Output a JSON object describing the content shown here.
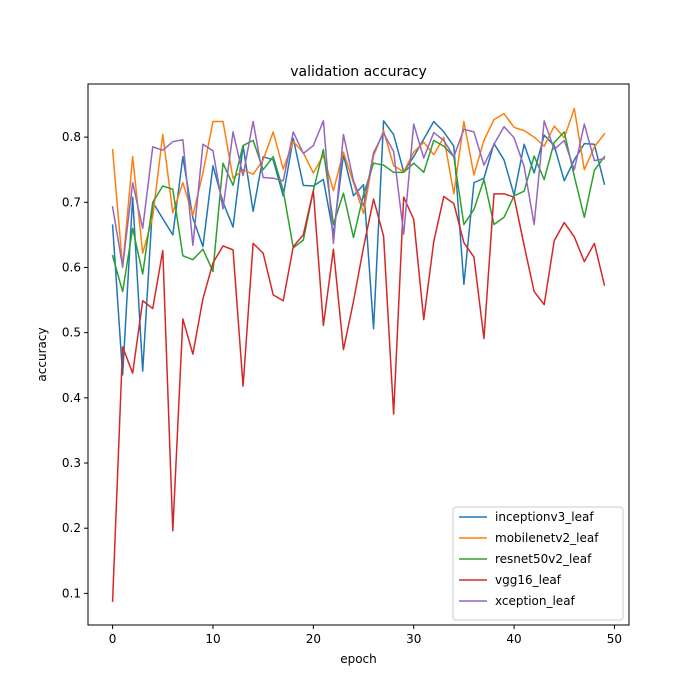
{
  "chart_data": {
    "type": "line",
    "title": "validation accuracy",
    "xlabel": "epoch",
    "ylabel": "accuracy",
    "xlim": [
      -2.45,
      51.45
    ],
    "ylim": [
      0.0515,
      0.8815
    ],
    "xticks": [
      0,
      10,
      20,
      30,
      40,
      50
    ],
    "xtick_labels": [
      "0",
      "10",
      "20",
      "30",
      "40",
      "50"
    ],
    "yticks": [
      0.1,
      0.2,
      0.3,
      0.4,
      0.5,
      0.6,
      0.7,
      0.8
    ],
    "ytick_labels": [
      "0.1",
      "0.2",
      "0.3",
      "0.4",
      "0.5",
      "0.6",
      "0.7",
      "0.8"
    ],
    "grid": false,
    "legend_position": "lower-right",
    "x": [
      0,
      1,
      2,
      3,
      4,
      5,
      6,
      7,
      8,
      9,
      10,
      11,
      12,
      13,
      14,
      15,
      16,
      17,
      18,
      19,
      20,
      21,
      22,
      23,
      24,
      25,
      26,
      27,
      28,
      29,
      30,
      31,
      32,
      33,
      34,
      35,
      36,
      37,
      38,
      39,
      40,
      41,
      42,
      43,
      44,
      45,
      46,
      47,
      48,
      49
    ],
    "series": [
      {
        "name": "inceptionv3_leaf",
        "color": "#1f77b4",
        "values": [
          0.665,
          0.435,
          0.708,
          0.441,
          0.7,
          0.675,
          0.65,
          0.77,
          0.676,
          0.632,
          0.756,
          0.7,
          0.662,
          0.787,
          0.686,
          0.77,
          0.765,
          0.71,
          0.798,
          0.726,
          0.725,
          0.735,
          0.651,
          0.773,
          0.71,
          0.727,
          0.506,
          0.825,
          0.804,
          0.747,
          0.77,
          0.797,
          0.824,
          0.808,
          0.786,
          0.574,
          0.73,
          0.737,
          0.79,
          0.765,
          0.711,
          0.789,
          0.745,
          0.803,
          0.787,
          0.733,
          0.765,
          0.79,
          0.789,
          0.728
        ]
      },
      {
        "name": "mobilenetv2_leaf",
        "color": "#ff7f0e",
        "values": [
          0.781,
          0.6,
          0.77,
          0.622,
          0.678,
          0.804,
          0.684,
          0.73,
          0.68,
          0.745,
          0.824,
          0.824,
          0.737,
          0.75,
          0.743,
          0.765,
          0.808,
          0.751,
          0.793,
          0.776,
          0.745,
          0.772,
          0.718,
          0.777,
          0.73,
          0.683,
          0.771,
          0.81,
          0.756,
          0.747,
          0.777,
          0.792,
          0.773,
          0.8,
          0.713,
          0.824,
          0.742,
          0.795,
          0.827,
          0.836,
          0.815,
          0.81,
          0.8,
          0.786,
          0.817,
          0.799,
          0.844,
          0.75,
          0.785,
          0.805
        ]
      },
      {
        "name": "resnet50v2_leaf",
        "color": "#2ca02c",
        "values": [
          0.618,
          0.563,
          0.66,
          0.59,
          0.7,
          0.725,
          0.72,
          0.618,
          0.612,
          0.628,
          0.594,
          0.76,
          0.726,
          0.787,
          0.795,
          0.75,
          0.77,
          0.718,
          0.63,
          0.642,
          0.718,
          0.781,
          0.666,
          0.714,
          0.646,
          0.712,
          0.76,
          0.757,
          0.746,
          0.746,
          0.76,
          0.746,
          0.795,
          0.786,
          0.77,
          0.666,
          0.689,
          0.735,
          0.666,
          0.677,
          0.71,
          0.717,
          0.771,
          0.735,
          0.792,
          0.808,
          0.74,
          0.677,
          0.749,
          0.77
        ]
      },
      {
        "name": "vgg16_leaf",
        "color": "#d62728",
        "values": [
          0.088,
          0.478,
          0.438,
          0.549,
          0.537,
          0.626,
          0.196,
          0.521,
          0.467,
          0.552,
          0.607,
          0.633,
          0.627,
          0.418,
          0.637,
          0.622,
          0.558,
          0.549,
          0.632,
          0.65,
          0.718,
          0.511,
          0.628,
          0.474,
          0.548,
          0.631,
          0.705,
          0.648,
          0.375,
          0.708,
          0.674,
          0.52,
          0.64,
          0.709,
          0.698,
          0.638,
          0.616,
          0.491,
          0.713,
          0.713,
          0.708,
          0.634,
          0.563,
          0.543,
          0.641,
          0.669,
          0.647,
          0.609,
          0.637,
          0.573
        ]
      },
      {
        "name": "xception_leaf",
        "color": "#9467bd",
        "values": [
          0.693,
          0.601,
          0.73,
          0.66,
          0.785,
          0.78,
          0.793,
          0.796,
          0.634,
          0.789,
          0.779,
          0.69,
          0.808,
          0.741,
          0.824,
          0.738,
          0.737,
          0.733,
          0.808,
          0.775,
          0.787,
          0.825,
          0.637,
          0.804,
          0.733,
          0.694,
          0.776,
          0.806,
          0.778,
          0.651,
          0.82,
          0.768,
          0.807,
          0.795,
          0.77,
          0.812,
          0.808,
          0.757,
          0.789,
          0.816,
          0.799,
          0.755,
          0.666,
          0.825,
          0.781,
          0.795,
          0.75,
          0.82,
          0.764,
          0.767
        ]
      }
    ]
  }
}
